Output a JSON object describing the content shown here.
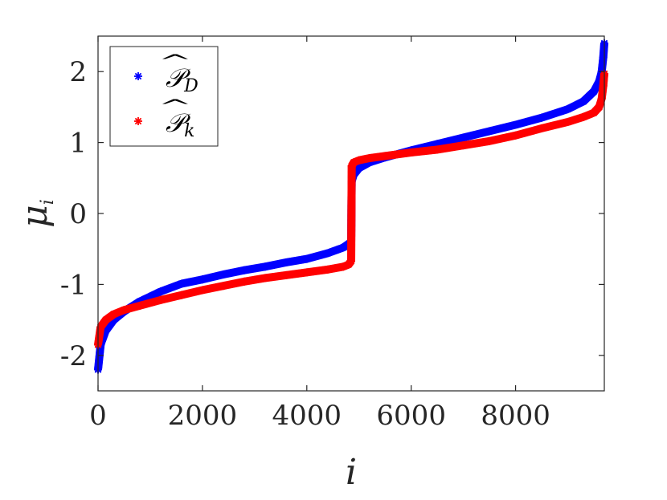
{
  "chart_data": {
    "type": "scatter",
    "title": "",
    "xlabel": "i",
    "ylabel_main": "μ",
    "ylabel_sub": "i",
    "xlim": [
      0,
      9700
    ],
    "ylim": [
      -2.5,
      2.5
    ],
    "xticks": [
      0,
      2000,
      4000,
      6000,
      8000
    ],
    "yticks": [
      -2,
      -1,
      0,
      1,
      2
    ],
    "xtick_labels": [
      "0",
      "2000",
      "4000",
      "6000",
      "8000"
    ],
    "ytick_labels": [
      "-2",
      "-1",
      "0",
      "1",
      "2"
    ],
    "grid": false,
    "legend_position": "top-left",
    "marker": "*",
    "series": [
      {
        "name_main": "𝒫",
        "name_hat": "^",
        "name_sub": "D",
        "color": "#0000ff",
        "x": [
          0,
          50,
          150,
          300,
          500,
          800,
          1200,
          1600,
          2000,
          2400,
          2800,
          3200,
          3600,
          4000,
          4400,
          4700,
          4800,
          4850,
          4860,
          4900,
          5000,
          5200,
          5500,
          6000,
          6500,
          7000,
          7500,
          8000,
          8500,
          9000,
          9300,
          9500,
          9600,
          9650,
          9680,
          9700
        ],
        "y": [
          -2.2,
          -1.85,
          -1.65,
          -1.5,
          -1.38,
          -1.24,
          -1.1,
          -0.99,
          -0.93,
          -0.86,
          -0.8,
          -0.75,
          -0.69,
          -0.64,
          -0.56,
          -0.48,
          -0.43,
          -0.4,
          0.45,
          0.55,
          0.64,
          0.72,
          0.79,
          0.89,
          0.98,
          1.07,
          1.16,
          1.25,
          1.35,
          1.47,
          1.58,
          1.72,
          1.86,
          2.0,
          2.2,
          2.4
        ]
      },
      {
        "name_main": "𝒫",
        "name_hat": "^",
        "name_sub": "k",
        "color": "#ff0000",
        "x": [
          0,
          50,
          150,
          300,
          500,
          800,
          1200,
          1600,
          2000,
          2400,
          2800,
          3200,
          3600,
          4000,
          4400,
          4700,
          4800,
          4850,
          4860,
          4900,
          5000,
          5200,
          5500,
          6000,
          6500,
          7000,
          7500,
          8000,
          8500,
          9000,
          9300,
          9500,
          9600,
          9650,
          9680,
          9700
        ],
        "y": [
          -1.85,
          -1.6,
          -1.5,
          -1.42,
          -1.36,
          -1.3,
          -1.22,
          -1.15,
          -1.08,
          -1.02,
          -0.96,
          -0.91,
          -0.87,
          -0.83,
          -0.79,
          -0.75,
          -0.72,
          -0.67,
          0.67,
          0.72,
          0.75,
          0.78,
          0.81,
          0.86,
          0.9,
          0.96,
          1.02,
          1.1,
          1.2,
          1.29,
          1.36,
          1.42,
          1.5,
          1.62,
          1.8,
          1.97
        ]
      }
    ]
  }
}
